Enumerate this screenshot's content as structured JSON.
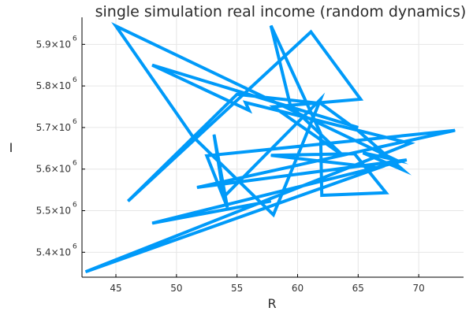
{
  "chart_data": {
    "type": "line",
    "title": "single simulation real income (random dynamics)",
    "xlabel": "R",
    "ylabel": "I",
    "xlim": [
      42.2,
      73.7
    ],
    "ylim": [
      5340000,
      5965000
    ],
    "grid": true,
    "legend": "none",
    "x_ticks": [
      {
        "value": 45,
        "label": "45"
      },
      {
        "value": 50,
        "label": "50"
      },
      {
        "value": 55,
        "label": "55"
      },
      {
        "value": 60,
        "label": "60"
      },
      {
        "value": 65,
        "label": "65"
      },
      {
        "value": 70,
        "label": "70"
      }
    ],
    "y_ticks": [
      {
        "value": 5400000,
        "label": "5.4×10",
        "exp": "6"
      },
      {
        "value": 5500000,
        "label": "5.5×10",
        "exp": "6"
      },
      {
        "value": 5600000,
        "label": "5.6×10",
        "exp": "6"
      },
      {
        "value": 5700000,
        "label": "5.7×10",
        "exp": "6"
      },
      {
        "value": 5800000,
        "label": "5.8×10",
        "exp": "6"
      },
      {
        "value": 5900000,
        "label": "5.9×10",
        "exp": "6"
      }
    ],
    "series": [
      {
        "color": "#009af9",
        "points": [
          [
            57.8,
            5523000
          ],
          [
            48.0,
            5470000
          ],
          [
            69.0,
            5622000
          ],
          [
            51.7,
            5556000
          ],
          [
            73.0,
            5693000
          ],
          [
            52.5,
            5632000
          ],
          [
            54.2,
            5508000
          ],
          [
            53.1,
            5683000
          ],
          [
            53.9,
            5533000
          ],
          [
            61.9,
            5768000
          ],
          [
            61.0,
            5703000
          ],
          [
            58.0,
            5490000
          ],
          [
            51.3,
            5680000
          ],
          [
            45.0,
            5944000
          ],
          [
            68.1,
            5622000
          ],
          [
            65.4,
            5639000
          ],
          [
            68.7,
            5598000
          ],
          [
            65.0,
            5692000
          ],
          [
            61.9,
            5758000
          ],
          [
            55.0,
            5780000
          ],
          [
            46.0,
            5523000
          ],
          [
            61.1,
            5930000
          ],
          [
            65.2,
            5768000
          ],
          [
            58.0,
            5750000
          ],
          [
            63.7,
            5634000
          ],
          [
            59.4,
            5753000
          ],
          [
            57.8,
            5945000
          ],
          [
            61.9,
            5686000
          ],
          [
            62.0,
            5537000
          ],
          [
            67.3,
            5543000
          ],
          [
            64.7,
            5637000
          ],
          [
            57.8,
            5633000
          ],
          [
            66.7,
            5603000
          ],
          [
            42.5,
            5353000
          ],
          [
            69.3,
            5662000
          ],
          [
            55.7,
            5760000
          ],
          [
            56.0,
            5741000
          ],
          [
            48.0,
            5850000
          ],
          [
            65.0,
            5700000
          ]
        ]
      }
    ]
  }
}
